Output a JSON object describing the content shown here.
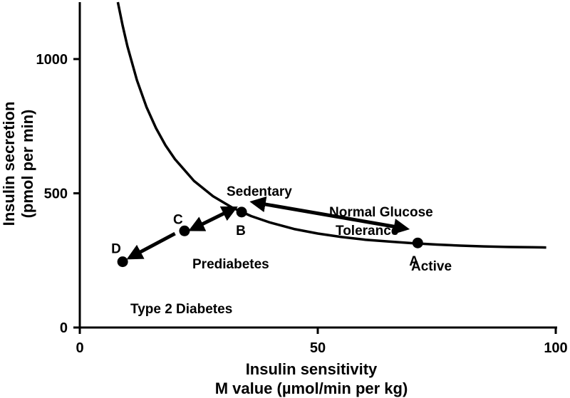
{
  "chart_data": {
    "type": "line",
    "xlabel": [
      "Insulin sensitivity",
      "M value (µmol/min per kg)"
    ],
    "ylabel": [
      "Insulin secretion",
      "(pmol per min)"
    ],
    "xlim": [
      0,
      100
    ],
    "ylim": [
      0,
      1220
    ],
    "x_ticks": [
      0,
      50,
      100
    ],
    "x_tick_labels": [
      "0",
      "50",
      "100"
    ],
    "y_ticks": [
      0,
      500,
      1000
    ],
    "y_tick_labels": [
      "0",
      "500",
      "1000"
    ],
    "grid": false,
    "curve": {
      "x": [
        8,
        9,
        10,
        12,
        14,
        16,
        18,
        20,
        24,
        28,
        32,
        36,
        40,
        45,
        50,
        55,
        60,
        65,
        70,
        75,
        80,
        85,
        90,
        95,
        98
      ],
      "y": [
        1212,
        1125,
        1048,
        921,
        822,
        743,
        679,
        627,
        546,
        489,
        447,
        415,
        391,
        367,
        350,
        337,
        327,
        320,
        314,
        309,
        305,
        302,
        300,
        299,
        298
      ]
    },
    "points": [
      {
        "label": "A",
        "x": 71,
        "y": 315
      },
      {
        "label": "B",
        "x": 34,
        "y": 430
      },
      {
        "label": "C",
        "x": 22,
        "y": 360
      },
      {
        "label": "D",
        "x": 9,
        "y": 245
      }
    ],
    "annotations": {
      "sedentary": "Sedentary",
      "ngt_line1": "Normal Glucose",
      "ngt_line2": "Tolerance",
      "active": "Active",
      "prediabetes": "Prediabetes",
      "t2d": "Type 2 Diabetes"
    },
    "arrows": [
      {
        "from": [
          37,
          465
        ],
        "to": [
          68,
          370
        ],
        "type": "double",
        "note": "Sedentary <-> Active"
      },
      {
        "from": [
          32,
          440
        ],
        "to": [
          24,
          370
        ],
        "type": "double",
        "note": "B <-> C"
      },
      {
        "from": [
          20,
          350
        ],
        "to": [
          11,
          265
        ],
        "type": "single",
        "note": "C -> D"
      }
    ]
  }
}
